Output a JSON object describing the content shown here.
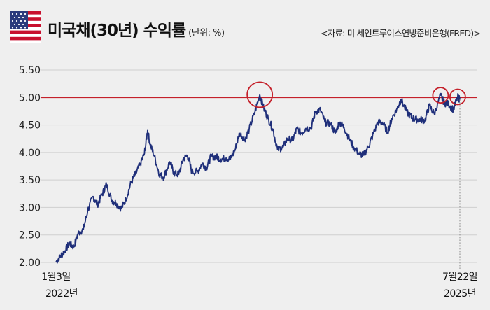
{
  "header": {
    "title": "미국채(30년) 수익률",
    "unit": "(단위: %)",
    "source": "<자료: 미 세인트루이스연방준비은행(FRED)>",
    "flag_icon": "us-flag-icon"
  },
  "colors": {
    "line": "#1f2f7a",
    "reference": "#c4202a",
    "highlight": "#c4202a",
    "grid": "#cfcfcf",
    "background": "#efefef"
  },
  "chart_data": {
    "type": "line",
    "title": "미국채(30년) 수익률",
    "ylabel": "",
    "xlabel": "",
    "ylim": [
      2.0,
      5.5
    ],
    "yticks": [
      "2.00",
      "2.50",
      "3.00",
      "3.50",
      "4.00",
      "4.50",
      "5.00",
      "5.50"
    ],
    "grid": true,
    "reference_line": 5.0,
    "x_start": {
      "date": "1월3일",
      "year": "2022년"
    },
    "x_end": {
      "date": "7월22일",
      "year": "2025년"
    },
    "highlights": [
      {
        "date": "2023-10-19",
        "value": 5.05
      },
      {
        "date": "2025-05-21",
        "value": 5.04
      },
      {
        "date": "2025-07-15",
        "value": 5.01
      }
    ],
    "series": [
      {
        "x": [
          "2022-01-03",
          "2022-01-18",
          "2022-02-01",
          "2022-02-15",
          "2022-03-01",
          "2022-03-15",
          "2022-04-01",
          "2022-04-15",
          "2022-05-02",
          "2022-05-16",
          "2022-06-01",
          "2022-06-14",
          "2022-07-01",
          "2022-07-15",
          "2022-08-01",
          "2022-08-15",
          "2022-09-01",
          "2022-09-15",
          "2022-09-30",
          "2022-10-14",
          "2022-10-24",
          "2022-11-01",
          "2022-11-15",
          "2022-12-01",
          "2022-12-15",
          "2023-01-03",
          "2023-01-17",
          "2023-02-01",
          "2023-02-15",
          "2023-03-01",
          "2023-03-15",
          "2023-04-03",
          "2023-04-17",
          "2023-05-01",
          "2023-05-15",
          "2023-06-01",
          "2023-06-15",
          "2023-07-03",
          "2023-07-17",
          "2023-08-01",
          "2023-08-15",
          "2023-09-01",
          "2023-09-15",
          "2023-10-02",
          "2023-10-19",
          "2023-11-01",
          "2023-11-15",
          "2023-12-01",
          "2023-12-15",
          "2024-01-02",
          "2024-01-16",
          "2024-02-01",
          "2024-02-15",
          "2024-03-01",
          "2024-03-15",
          "2024-04-01",
          "2024-04-15",
          "2024-05-01",
          "2024-05-15",
          "2024-06-03",
          "2024-06-17",
          "2024-07-01",
          "2024-07-15",
          "2024-08-01",
          "2024-08-15",
          "2024-09-03",
          "2024-09-16",
          "2024-10-01",
          "2024-10-15",
          "2024-11-01",
          "2024-11-15",
          "2024-12-02",
          "2024-12-16",
          "2025-01-02",
          "2025-01-14",
          "2025-02-03",
          "2025-02-18",
          "2025-03-03",
          "2025-03-17",
          "2025-04-01",
          "2025-04-15",
          "2025-05-01",
          "2025-05-21",
          "2025-06-02",
          "2025-06-16",
          "2025-07-01",
          "2025-07-15",
          "2025-07-22"
        ],
        "y": [
          2.01,
          2.12,
          2.21,
          2.35,
          2.28,
          2.53,
          2.6,
          2.95,
          3.2,
          3.05,
          3.25,
          3.42,
          3.13,
          3.08,
          2.98,
          3.15,
          3.45,
          3.6,
          3.78,
          3.98,
          4.4,
          4.15,
          3.93,
          3.6,
          3.55,
          3.83,
          3.62,
          3.6,
          3.88,
          3.95,
          3.65,
          3.65,
          3.8,
          3.72,
          3.92,
          3.92,
          3.88,
          3.9,
          3.88,
          4.05,
          4.35,
          4.24,
          4.42,
          4.72,
          5.05,
          4.8,
          4.62,
          4.4,
          4.05,
          4.1,
          4.25,
          4.22,
          4.43,
          4.35,
          4.44,
          4.45,
          4.75,
          4.77,
          4.55,
          4.52,
          4.35,
          4.55,
          4.46,
          4.25,
          4.1,
          3.97,
          3.95,
          4.1,
          4.3,
          4.55,
          4.55,
          4.37,
          4.62,
          4.8,
          4.96,
          4.73,
          4.63,
          4.6,
          4.6,
          4.58,
          4.85,
          4.7,
          5.04,
          4.9,
          4.88,
          4.78,
          5.01,
          4.96
        ]
      }
    ]
  }
}
